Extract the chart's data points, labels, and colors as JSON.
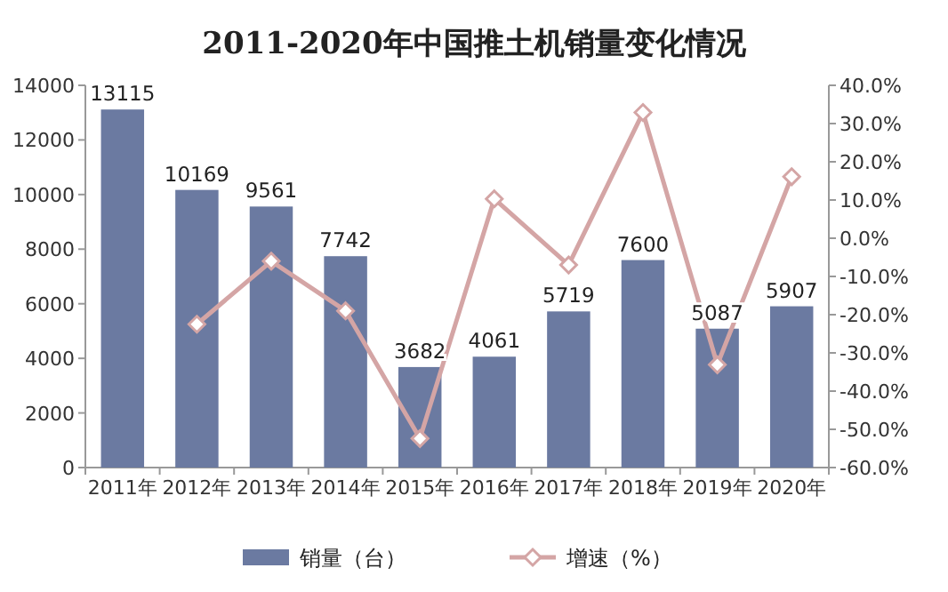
{
  "chart_data": {
    "type": "bar",
    "title": "2011-2020年中国推土机销量变化情况",
    "categories": [
      "2011年",
      "2012年",
      "2013年",
      "2014年",
      "2015年",
      "2016年",
      "2017年",
      "2018年",
      "2019年",
      "2020年"
    ],
    "series": [
      {
        "name": "销量（台）",
        "color": "#6b7aa1",
        "values": [
          13115,
          10169,
          9561,
          7742,
          3682,
          4061,
          5719,
          7600,
          5087,
          5907
        ],
        "value_labels": [
          "13115",
          "10169",
          "9561",
          "7742",
          "3682",
          "4061",
          "5719",
          "7600",
          "5087",
          "5907"
        ]
      },
      {
        "name": "增速（%）",
        "type": "line",
        "axis": "y2",
        "color": "#d4a5a5",
        "marker": "diamond",
        "values": [
          null,
          -22.5,
          -6.0,
          -19.0,
          -52.4,
          10.3,
          -7,
          32.9,
          -33.1,
          16.1
        ]
      }
    ],
    "ylim": [
      0,
      14000
    ],
    "yticks": [
      0,
      2000,
      4000,
      6000,
      8000,
      10000,
      12000,
      14000
    ],
    "y2lim": [
      -60,
      40
    ],
    "y2ticks": [
      {
        "value": -60,
        "label": "-60.0%"
      },
      {
        "value": -50,
        "label": "-50.0%"
      },
      {
        "value": -40,
        "label": "-40.0%"
      },
      {
        "value": -30,
        "label": "-30.0%"
      },
      {
        "value": -20,
        "label": "-20.0%"
      },
      {
        "value": -10,
        "label": "-10.0%"
      },
      {
        "value": 0,
        "label": "0.0%"
      },
      {
        "value": 10,
        "label": "10.0%"
      },
      {
        "value": 20,
        "label": "20.0%"
      },
      {
        "value": 30,
        "label": "30.0%"
      },
      {
        "value": 40,
        "label": "40.0%"
      }
    ],
    "legend": "bottom"
  }
}
